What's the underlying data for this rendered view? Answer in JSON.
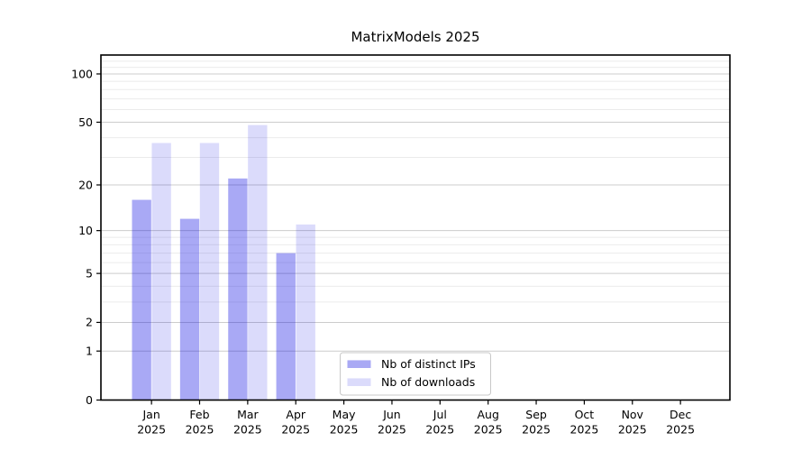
{
  "title": "MatrixModels 2025",
  "chart_data": {
    "type": "bar",
    "title": "MatrixModels 2025",
    "x_categories": [
      "Jan",
      "Feb",
      "Mar",
      "Apr",
      "May",
      "Jun",
      "Jul",
      "Aug",
      "Sep",
      "Oct",
      "Nov",
      "Dec"
    ],
    "x_year": "2025",
    "series": [
      {
        "name": "Nb of distinct IPs",
        "values": [
          16,
          12,
          22,
          7,
          0,
          0,
          0,
          0,
          0,
          0,
          0,
          0
        ],
        "bar_color": "rgba(8,8,225,0.35)",
        "legend_color": "#a9a9f4"
      },
      {
        "name": "Nb of downloads",
        "values": [
          37,
          37,
          48,
          11,
          0,
          0,
          0,
          0,
          0,
          0,
          0,
          0
        ],
        "bar_color": "rgba(8,8,225,0.145)",
        "legend_color": "#dbdbfb"
      }
    ],
    "yscale": "log1p",
    "ylim": [
      0,
      130
    ],
    "y_major_ticks": [
      0,
      1,
      2,
      5,
      10,
      20,
      50,
      100
    ],
    "y_minor_ticks": [
      3,
      4,
      6,
      7,
      8,
      9,
      30,
      40,
      60,
      70,
      80,
      90,
      110,
      120
    ],
    "grid": "horizontal",
    "legend_position": "inside lower-center-left"
  },
  "colors": {
    "background": "#ffffff",
    "frame": "#000000",
    "grid_major": "#cccccc",
    "grid_minor": "#ebebeb",
    "legend_border": "#c8c8c8",
    "legend_background": "#ffffff",
    "text": "#000000"
  }
}
